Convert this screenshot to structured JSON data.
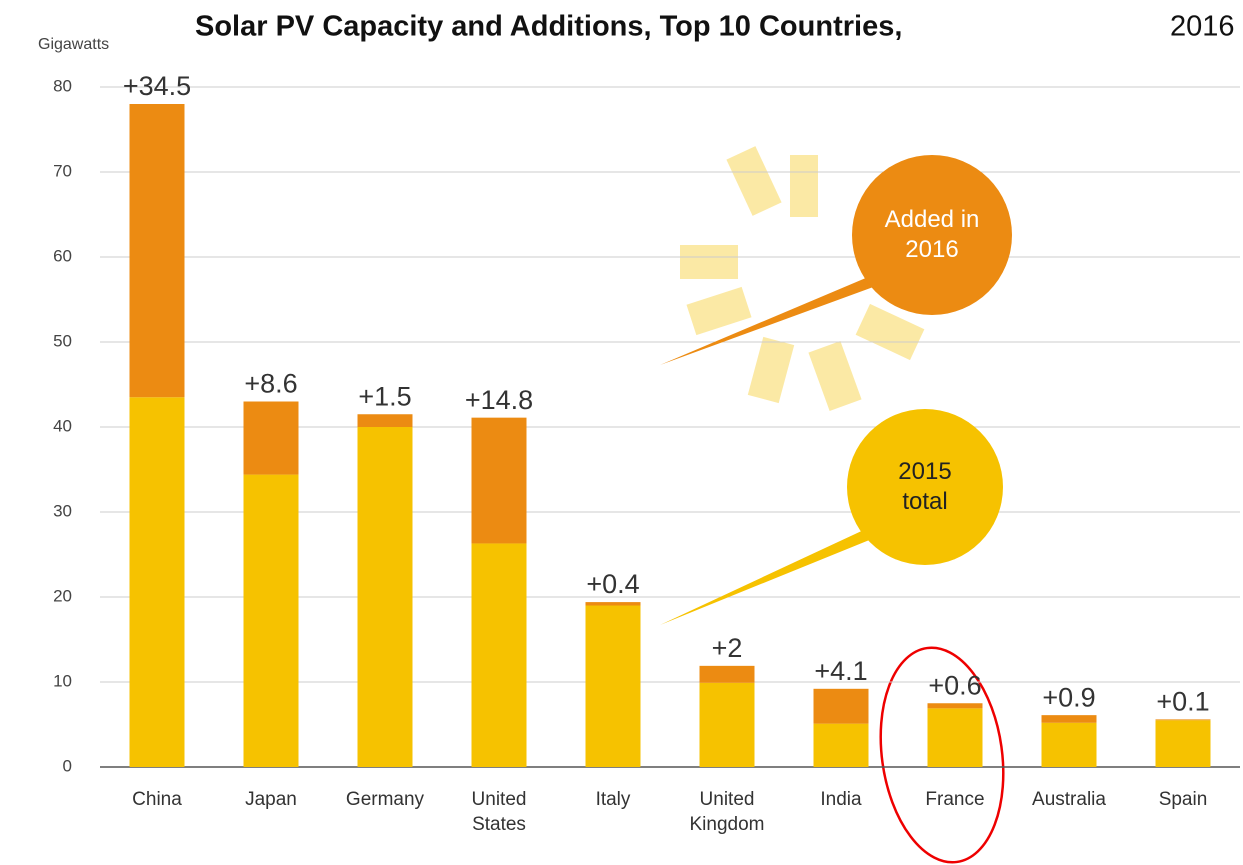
{
  "chart_data": {
    "type": "stacked-bar",
    "title": "Solar PV Capacity and Additions, Top 10 Countries,",
    "title_suffix": "2016",
    "y_label": "Gigawatts",
    "categories": [
      "China",
      "Japan",
      "Germany",
      "United States",
      "Italy",
      "United Kingdom",
      "India",
      "France",
      "Australia",
      "Spain"
    ],
    "series": [
      {
        "name": "2015 total",
        "color": "#f6c200",
        "values": [
          43.5,
          34.4,
          40,
          26.3,
          19,
          9.9,
          5.1,
          6.9,
          5.2,
          5.5
        ]
      },
      {
        "name": "Added in 2016",
        "color": "#ec8b12",
        "values": [
          34.5,
          8.6,
          1.5,
          14.8,
          0.4,
          2,
          4.1,
          0.6,
          0.9,
          0.1
        ],
        "value_labels": [
          "+34.5",
          "+8.6",
          "+1.5",
          "+14.8",
          "+0.4",
          "+2",
          "+4.1",
          "+0.6",
          "+0.9",
          "+0.1"
        ]
      }
    ],
    "ylim": [
      0,
      80
    ],
    "yticks": [
      0,
      10,
      20,
      30,
      40,
      50,
      60,
      70,
      80
    ],
    "grid": true
  }
}
